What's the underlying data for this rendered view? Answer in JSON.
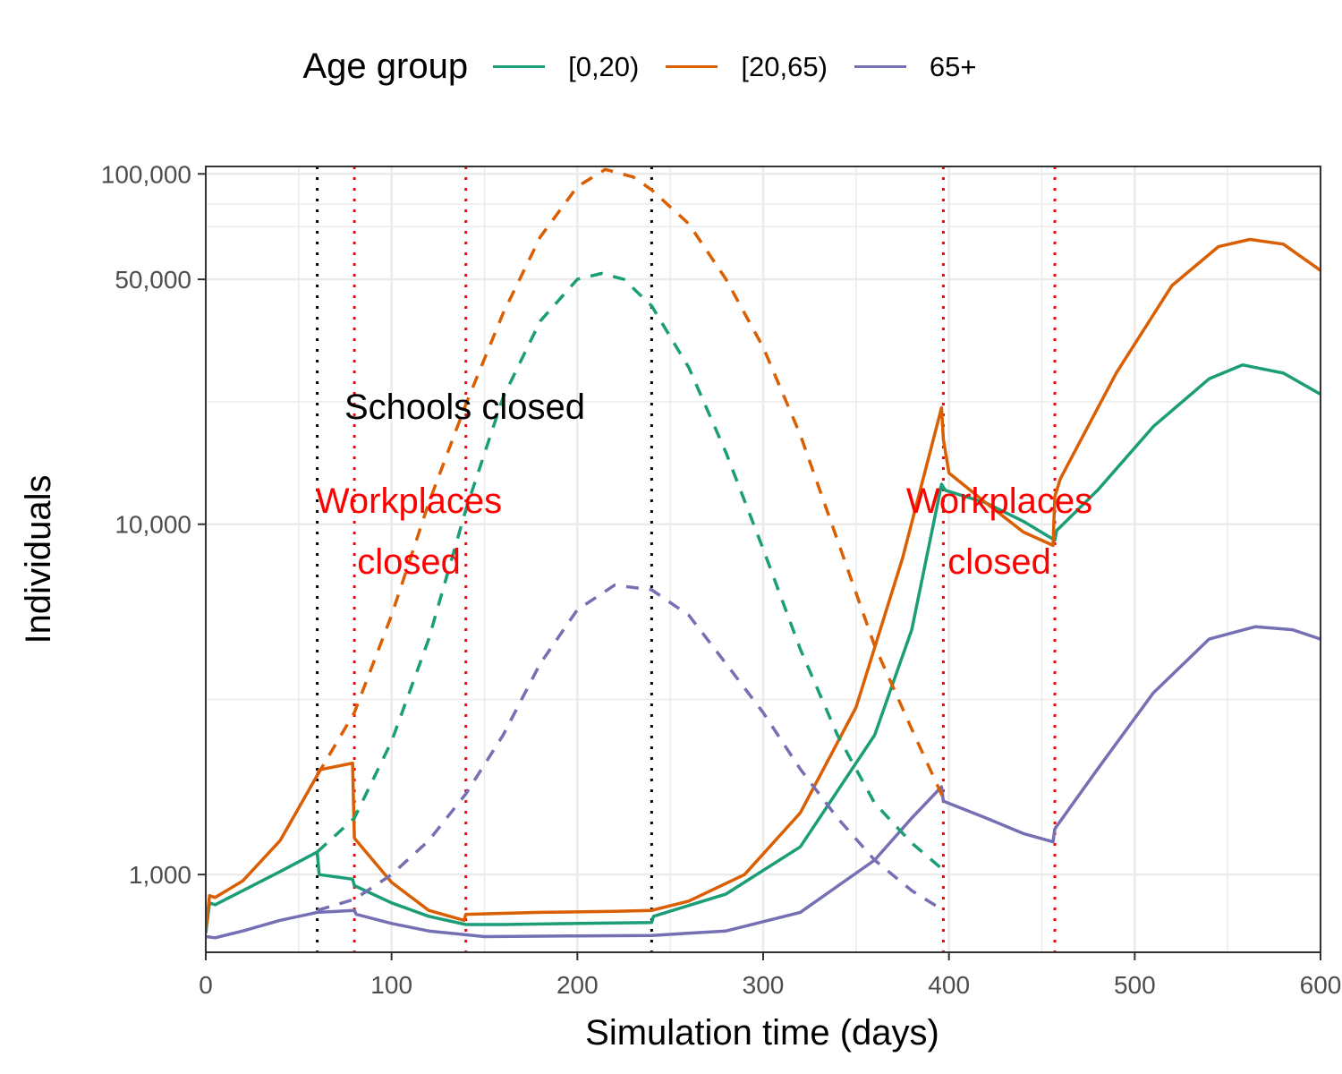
{
  "legend": {
    "title": "Age group",
    "items": [
      {
        "label": "[0,20)",
        "color": "#1b9e77"
      },
      {
        "label": "[20,65)",
        "color": "#d95f02"
      },
      {
        "label": "65+",
        "color": "#7570b3"
      }
    ]
  },
  "chart_data": {
    "type": "line",
    "xlabel": "Simulation time (days)",
    "ylabel": "Individuals",
    "xlim": [
      0,
      600
    ],
    "ylim": [
      600,
      105000
    ],
    "y_scale": "log",
    "x_ticks": [
      0,
      100,
      200,
      300,
      400,
      500,
      600
    ],
    "x_tick_labels": [
      "0",
      "100",
      "200",
      "300",
      "400",
      "500",
      "600"
    ],
    "y_ticks": [
      1000,
      10000,
      50000,
      100000
    ],
    "y_tick_labels": [
      "1,000",
      "10,000",
      "50,000",
      "100,000"
    ],
    "grid": true,
    "legend_position": "top",
    "annotations": {
      "schools": {
        "text": "Schools closed",
        "color": "#000000"
      },
      "work_left_1": "Workplaces",
      "work_left_2": "closed",
      "work_right_1": "Workplaces",
      "work_right_2": "closed",
      "work_color": "#ff0000"
    },
    "vlines": [
      {
        "x": 60,
        "color": "#000000"
      },
      {
        "x": 240,
        "color": "#000000"
      },
      {
        "x": 80,
        "color": "#ff0000"
      },
      {
        "x": 140,
        "color": "#ff0000"
      },
      {
        "x": 397,
        "color": "#ff0000"
      },
      {
        "x": 457,
        "color": "#ff0000"
      }
    ],
    "series": [
      {
        "name": "[0,20)",
        "line": "solid",
        "color": "#1b9e77",
        "points": [
          [
            0,
            680
          ],
          [
            2,
            830
          ],
          [
            5,
            820
          ],
          [
            20,
            900
          ],
          [
            40,
            1020
          ],
          [
            60,
            1160
          ],
          [
            61,
            1000
          ],
          [
            79,
            970
          ],
          [
            80,
            930
          ],
          [
            100,
            830
          ],
          [
            120,
            760
          ],
          [
            140,
            720
          ],
          [
            160,
            720
          ],
          [
            200,
            725
          ],
          [
            240,
            730
          ],
          [
            241,
            760
          ],
          [
            280,
            880
          ],
          [
            320,
            1200
          ],
          [
            360,
            2500
          ],
          [
            380,
            5000
          ],
          [
            396,
            13000
          ],
          [
            398,
            12500
          ],
          [
            420,
            11500
          ],
          [
            440,
            10200
          ],
          [
            457,
            9000
          ],
          [
            458,
            9600
          ],
          [
            480,
            12500
          ],
          [
            510,
            19000
          ],
          [
            540,
            26000
          ],
          [
            558,
            28500
          ],
          [
            580,
            27000
          ],
          [
            600,
            23500
          ]
        ]
      },
      {
        "name": "[20,65)",
        "line": "solid",
        "color": "#d95f02",
        "points": [
          [
            0,
            690
          ],
          [
            2,
            870
          ],
          [
            5,
            860
          ],
          [
            20,
            960
          ],
          [
            40,
            1250
          ],
          [
            60,
            1920
          ],
          [
            61,
            1990
          ],
          [
            79,
            2080
          ],
          [
            80,
            1270
          ],
          [
            100,
            950
          ],
          [
            120,
            790
          ],
          [
            139,
            740
          ],
          [
            140,
            770
          ],
          [
            180,
            780
          ],
          [
            220,
            785
          ],
          [
            240,
            790
          ],
          [
            260,
            840
          ],
          [
            290,
            1000
          ],
          [
            320,
            1500
          ],
          [
            350,
            3000
          ],
          [
            375,
            8000
          ],
          [
            396,
            21500
          ],
          [
            397,
            17500
          ],
          [
            400,
            14000
          ],
          [
            420,
            11500
          ],
          [
            440,
            9500
          ],
          [
            456,
            8700
          ],
          [
            457,
            12000
          ],
          [
            460,
            13500
          ],
          [
            490,
            27000
          ],
          [
            520,
            48000
          ],
          [
            545,
            62000
          ],
          [
            562,
            65000
          ],
          [
            580,
            63000
          ],
          [
            600,
            53000
          ]
        ]
      },
      {
        "name": "65+",
        "line": "solid",
        "color": "#7570b3",
        "points": [
          [
            0,
            665
          ],
          [
            5,
            660
          ],
          [
            20,
            690
          ],
          [
            40,
            740
          ],
          [
            60,
            780
          ],
          [
            80,
            790
          ],
          [
            81,
            770
          ],
          [
            100,
            725
          ],
          [
            120,
            690
          ],
          [
            150,
            665
          ],
          [
            200,
            668
          ],
          [
            240,
            670
          ],
          [
            280,
            690
          ],
          [
            320,
            780
          ],
          [
            360,
            1100
          ],
          [
            380,
            1450
          ],
          [
            396,
            1780
          ],
          [
            397,
            1620
          ],
          [
            420,
            1450
          ],
          [
            440,
            1310
          ],
          [
            456,
            1240
          ],
          [
            457,
            1350
          ],
          [
            480,
            2000
          ],
          [
            510,
            3300
          ],
          [
            540,
            4700
          ],
          [
            565,
            5100
          ],
          [
            585,
            5000
          ],
          [
            600,
            4700
          ]
        ]
      },
      {
        "name": "[0,20)",
        "line": "dashed",
        "color": "#1b9e77",
        "points": [
          [
            60,
            1160
          ],
          [
            80,
            1450
          ],
          [
            100,
            2400
          ],
          [
            120,
            4700
          ],
          [
            140,
            11000
          ],
          [
            160,
            23000
          ],
          [
            180,
            38000
          ],
          [
            200,
            50000
          ],
          [
            213,
            52000
          ],
          [
            225,
            50000
          ],
          [
            240,
            42000
          ],
          [
            260,
            28000
          ],
          [
            280,
            16000
          ],
          [
            300,
            8500
          ],
          [
            320,
            4400
          ],
          [
            340,
            2500
          ],
          [
            360,
            1600
          ],
          [
            380,
            1230
          ],
          [
            397,
            1030
          ]
        ]
      },
      {
        "name": "[20,65)",
        "line": "dashed",
        "color": "#d95f02",
        "points": [
          [
            60,
            1920
          ],
          [
            80,
            2900
          ],
          [
            100,
            5500
          ],
          [
            120,
            11500
          ],
          [
            140,
            22000
          ],
          [
            160,
            40000
          ],
          [
            180,
            66000
          ],
          [
            200,
            92000
          ],
          [
            215,
            103000
          ],
          [
            230,
            98000
          ],
          [
            240,
            90000
          ],
          [
            260,
            72000
          ],
          [
            280,
            50000
          ],
          [
            300,
            32000
          ],
          [
            320,
            18000
          ],
          [
            340,
            9000
          ],
          [
            360,
            4500
          ],
          [
            380,
            2600
          ],
          [
            397,
            1650
          ]
        ]
      },
      {
        "name": "65+",
        "line": "dashed",
        "color": "#7570b3",
        "points": [
          [
            60,
            790
          ],
          [
            80,
            850
          ],
          [
            100,
            1000
          ],
          [
            120,
            1250
          ],
          [
            140,
            1700
          ],
          [
            160,
            2500
          ],
          [
            180,
            4000
          ],
          [
            200,
            5700
          ],
          [
            220,
            6700
          ],
          [
            240,
            6500
          ],
          [
            260,
            5500
          ],
          [
            280,
            4000
          ],
          [
            300,
            2900
          ],
          [
            320,
            2000
          ],
          [
            340,
            1450
          ],
          [
            360,
            1100
          ],
          [
            380,
            900
          ],
          [
            397,
            790
          ]
        ]
      }
    ]
  }
}
